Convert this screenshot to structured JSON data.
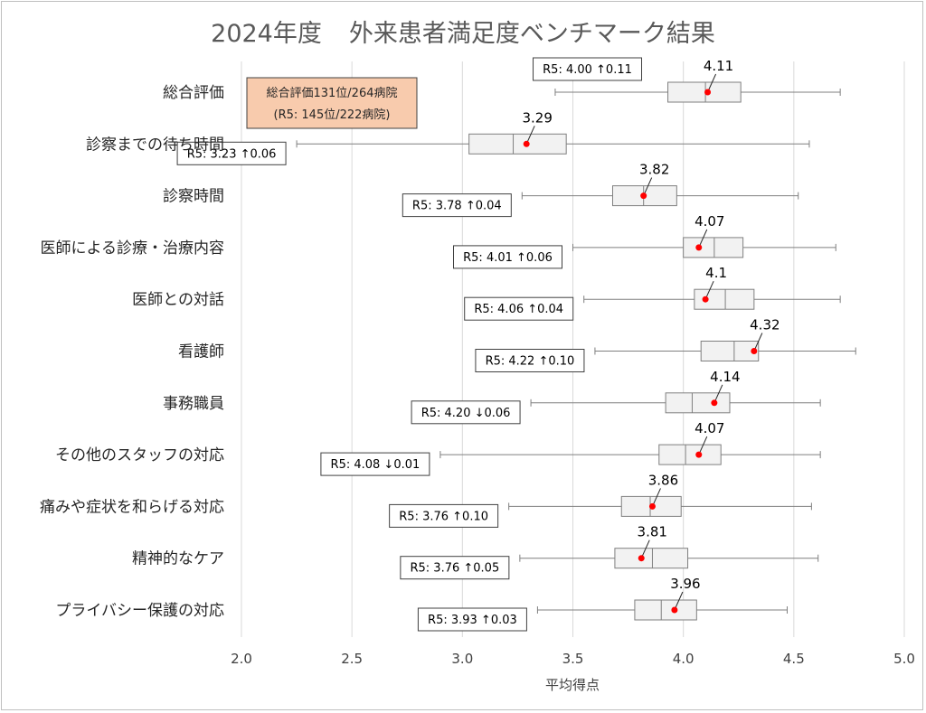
{
  "chart_data": {
    "type": "boxplot",
    "title_year": "2024年度",
    "title_main": "外来患者満足度ベンチマーク結果",
    "xlabel": "平均得点",
    "xlim": [
      2.0,
      5.0
    ],
    "xticks": [
      "2.0",
      "2.5",
      "3.0",
      "3.5",
      "4.0",
      "4.5",
      "5.0"
    ],
    "grid": "vertical",
    "colors": {
      "box_fill": "#f2f2f2",
      "box_stroke": "#7f7f7f",
      "point": "#ff0000",
      "note_fill": "#f8cbad"
    },
    "note": {
      "line1": "総合評価131位/264病院",
      "line2": "(R5: 145位/222病院)"
    },
    "categories": [
      {
        "label": "総合評価",
        "whisker_low": 3.42,
        "q1": 3.93,
        "median": 4.1,
        "q3": 4.26,
        "whisker_high": 4.71,
        "value": 4.11,
        "value_label": "4.11",
        "r5_label": "R5:  4.00 ↑0.11"
      },
      {
        "label": "診察までの待ち時間",
        "whisker_low": 2.25,
        "q1": 3.03,
        "median": 3.23,
        "q3": 3.47,
        "whisker_high": 4.57,
        "value": 3.29,
        "value_label": "3.29",
        "r5_label": "R5:  3.23 ↑0.06"
      },
      {
        "label": "診察時間",
        "whisker_low": 3.27,
        "q1": 3.68,
        "median": 3.82,
        "q3": 3.97,
        "whisker_high": 4.52,
        "value": 3.82,
        "value_label": "3.82",
        "r5_label": "R5:  3.78 ↑0.04"
      },
      {
        "label": "医師による診療・治療内容",
        "whisker_low": 3.5,
        "q1": 4.0,
        "median": 4.14,
        "q3": 4.27,
        "whisker_high": 4.69,
        "value": 4.07,
        "value_label": "4.07",
        "r5_label": "R5:  4.01 ↑0.06"
      },
      {
        "label": "医師との対話",
        "whisker_low": 3.55,
        "q1": 4.05,
        "median": 4.19,
        "q3": 4.32,
        "whisker_high": 4.71,
        "value": 4.1,
        "value_label": "4.1",
        "r5_label": "R5:  4.06 ↑0.04"
      },
      {
        "label": "看護師",
        "whisker_low": 3.6,
        "q1": 4.08,
        "median": 4.23,
        "q3": 4.34,
        "whisker_high": 4.78,
        "value": 4.32,
        "value_label": "4.32",
        "r5_label": "R5:  4.22 ↑0.10"
      },
      {
        "label": "事務職員",
        "whisker_low": 3.31,
        "q1": 3.92,
        "median": 4.04,
        "q3": 4.21,
        "whisker_high": 4.62,
        "value": 4.14,
        "value_label": "4.14",
        "r5_label": "R5:  4.20 ↓0.06"
      },
      {
        "label": "その他のスタッフの対応",
        "whisker_low": 2.9,
        "q1": 3.89,
        "median": 4.01,
        "q3": 4.17,
        "whisker_high": 4.62,
        "value": 4.07,
        "value_label": "4.07",
        "r5_label": "R5:  4.08 ↓0.01"
      },
      {
        "label": "痛みや症状を和らげる対応",
        "whisker_low": 3.21,
        "q1": 3.72,
        "median": 3.85,
        "q3": 3.99,
        "whisker_high": 4.58,
        "value": 3.86,
        "value_label": "3.86",
        "r5_label": "R5:  3.76 ↑0.10"
      },
      {
        "label": "精神的なケア",
        "whisker_low": 3.26,
        "q1": 3.69,
        "median": 3.86,
        "q3": 4.02,
        "whisker_high": 4.61,
        "value": 3.81,
        "value_label": "3.81",
        "r5_label": "R5:  3.76 ↑0.05"
      },
      {
        "label": "プライバシー保護の対応",
        "whisker_low": 3.34,
        "q1": 3.78,
        "median": 3.9,
        "q3": 4.06,
        "whisker_high": 4.47,
        "value": 3.96,
        "value_label": "3.96",
        "r5_label": "R5:  3.93 ↑0.03"
      }
    ]
  }
}
